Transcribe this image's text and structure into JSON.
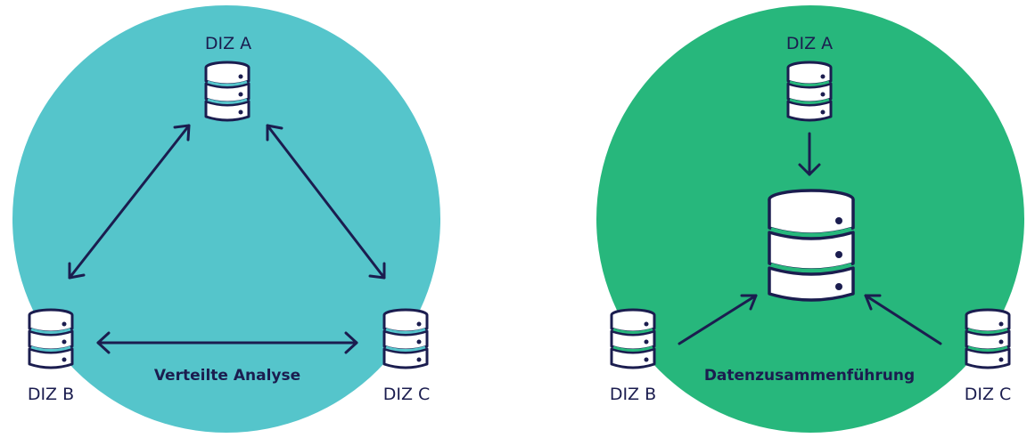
{
  "colors": {
    "left_circle": "#55c5cb",
    "right_circle": "#27b77c",
    "stroke": "#1b1d4f",
    "disk_fill": "#ffffff"
  },
  "left": {
    "caption": "Verteilte Analyse",
    "nodes": {
      "a": "DIZ A",
      "b": "DIZ B",
      "c": "DIZ C"
    }
  },
  "right": {
    "caption": "Datenzusammenführung",
    "nodes": {
      "a": "DIZ A",
      "b": "DIZ B",
      "c": "DIZ C"
    }
  },
  "icons": {
    "database": "database-icon",
    "central_database": "central-database-icon"
  }
}
